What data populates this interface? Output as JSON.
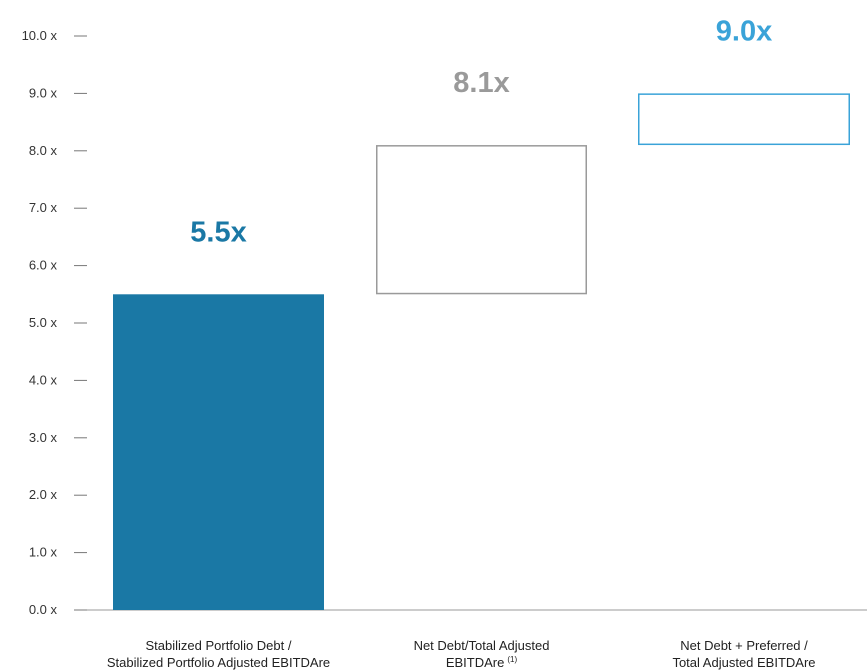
{
  "chart_data": {
    "type": "bar",
    "subtype": "waterfall",
    "ylim": [
      0,
      10
    ],
    "yticks": [
      "0.0 x",
      "1.0 x",
      "2.0 x",
      "3.0 x",
      "4.0 x",
      "5.0 x",
      "6.0 x",
      "7.0 x",
      "8.0 x",
      "9.0 x",
      "10.0 x"
    ],
    "ytick_values": [
      0,
      1,
      2,
      3,
      4,
      5,
      6,
      7,
      8,
      9,
      10
    ],
    "grid": false,
    "bars": [
      {
        "label_lines": [
          "Stabilized Portfolio Debt /",
          "Stabilized Portfolio Adjusted EBITDAre"
        ],
        "label_sup": "",
        "base": 0,
        "value": 5.5,
        "value_label": "5.5x",
        "style": "filled",
        "color": "#1a78a5",
        "label_color": "#1a78a5"
      },
      {
        "label_lines": [
          "Net Debt/Total Adjusted",
          "EBITDAre"
        ],
        "label_sup": "(1)",
        "base": 5.5,
        "value": 8.1,
        "value_label": "8.1x",
        "style": "outline",
        "color": "#9a9a9a",
        "label_color": "#9a9a9a"
      },
      {
        "label_lines": [
          "Net Debt + Preferred /",
          "Total Adjusted EBITDAre"
        ],
        "label_sup": "",
        "base": 8.1,
        "value": 9.0,
        "value_label": "9.0x",
        "style": "outline",
        "color": "#3aa3d8",
        "label_color": "#3aa3d8"
      }
    ]
  }
}
